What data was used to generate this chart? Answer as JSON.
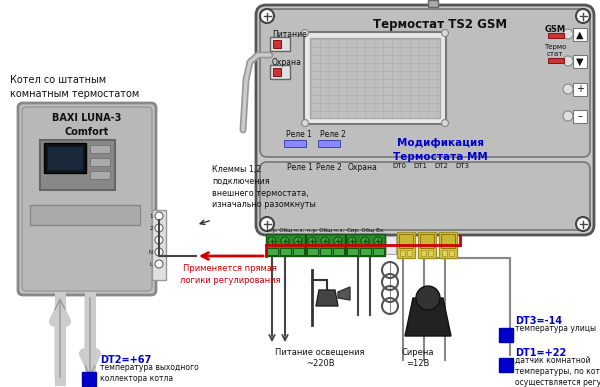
{
  "title": "Термостат TS2 GSM",
  "subtitle": "Модификация\nТермостата ММ",
  "boiler_title": "Котел со штатным\nкомнатным термостатом",
  "boiler_model": "BAXI LUNA-3\nComfort",
  "clemmy_text": "Клеммы 1,2\nподключения\nвнешнего термостата,\nизначально разомкнуты",
  "logic_text": "Применяется прямая\nлогики регулирования",
  "dt1_label": "DT1=+22",
  "dt1_desc": "датчик комнатной\nтемпературы, по которому\nосуществляется регулирование",
  "dt2_label": "DT2=+67",
  "dt2_desc": "температура выходного\nколлектора котла",
  "dt3_label": "DT3=-14",
  "dt3_desc": "температура улицы",
  "питание_text": "Питание освещения\n~220В",
  "sirena_text": "Сирена\n=12В",
  "gsm_text": "GSM",
  "termo_stat_text": "Термо\nстат",
  "rele1_text": "Реле 1",
  "rele2_text": "Реле 2",
  "ohrana_text": "Охрана",
  "pitanie_text": "Питание",
  "ohrana2_text": "Охрана",
  "dt0_text": "DT0",
  "dt1_text": "DT1",
  "dt2_text": "DT2",
  "dt3_text": "DT3",
  "bg_color": "#ffffff",
  "device_bg": "#d0d0d0",
  "blue_color": "#0000cc",
  "red_color": "#cc0000",
  "dark_text": "#111111",
  "connector_green": "#228B22",
  "connector_yellow": "#d4c84a"
}
